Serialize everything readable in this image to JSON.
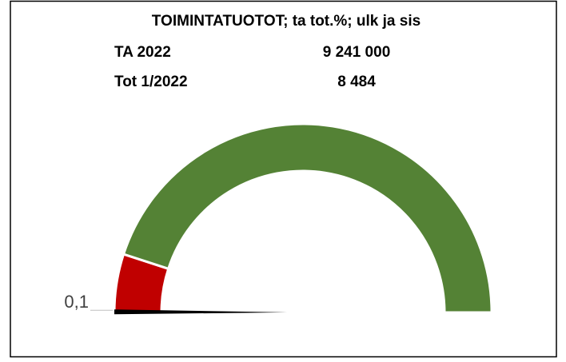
{
  "chart_data": {
    "type": "gauge",
    "title": "TOIMINTATUOTOT; ta tot.%; ulk ja sis",
    "info": [
      [
        "TA 2022",
        "9 241 000"
      ],
      [
        "Tot 1/2022",
        "8 484"
      ]
    ],
    "ylim": [
      0,
      100
    ],
    "bands": [
      {
        "from": 0,
        "to": 10,
        "color": "#c00000"
      },
      {
        "from": 10,
        "to": 100,
        "color": "#548235"
      }
    ],
    "value": 0.1,
    "value_label": "0,1",
    "needle_color": "#000000"
  }
}
